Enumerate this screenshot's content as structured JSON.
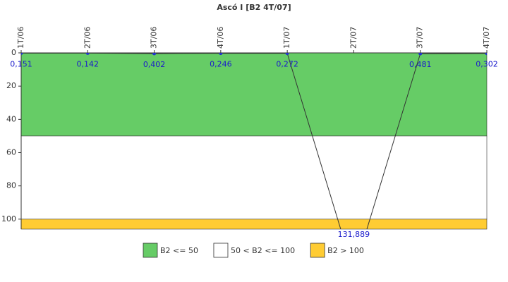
{
  "chart_data": {
    "type": "line",
    "title": "Ascó I [B2 4T/07]",
    "categories": [
      "1T/06",
      "2T/06",
      "3T/06",
      "4T/06",
      "1T/07",
      "2T/07",
      "3T/07",
      "4T/07"
    ],
    "series": [
      {
        "name": "B2",
        "color": "#333333",
        "values": [
          0.151,
          0.142,
          0.402,
          0.246,
          0.272,
          131.889,
          0.481,
          0.302
        ],
        "value_labels": [
          "0,151",
          "0,142",
          "0,402",
          "0,246",
          "0,272",
          "131,889",
          "0,481",
          "0,302"
        ]
      }
    ],
    "ylim": [
      0,
      106
    ],
    "yticks": [
      0,
      20,
      40,
      60,
      80,
      100
    ],
    "y_inverted": true,
    "bands": [
      {
        "name": "B2 <= 50",
        "color": "#66cc66",
        "from": 0,
        "to": 50
      },
      {
        "name": "50 < B2 <= 100",
        "color": "#ffffff",
        "from": 50,
        "to": 100
      },
      {
        "name": "B2 > 100",
        "color": "#ffcc33",
        "from": 100,
        "to": 106
      }
    ]
  }
}
